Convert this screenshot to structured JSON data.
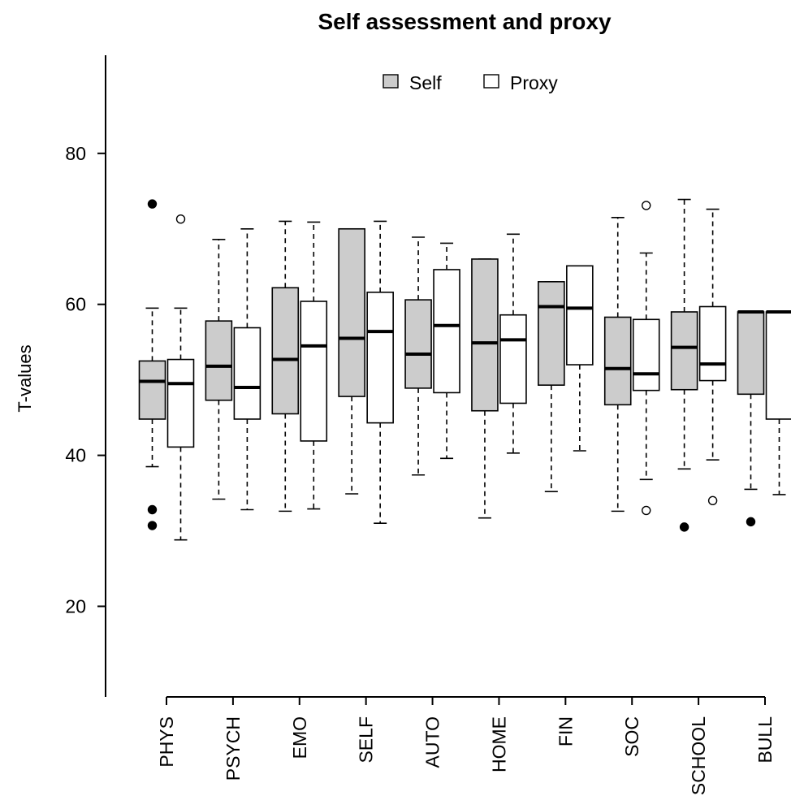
{
  "chart_data": {
    "type": "boxplot",
    "title": "Self assessment and proxy",
    "ylabel": "T-values",
    "xlabel": "",
    "ylim": [
      8,
      93
    ],
    "yticks": [
      20,
      40,
      60,
      80
    ],
    "legend": {
      "placement": "top-center",
      "entries": [
        {
          "name": "Self",
          "fill": "#cccccc"
        },
        {
          "name": "Proxy",
          "fill": "#ffffff"
        }
      ]
    },
    "categories": [
      "PHYS",
      "PSYCH",
      "EMO",
      "SELF",
      "AUTO",
      "HOME",
      "FIN",
      "SOC",
      "SCHOOL",
      "BULL"
    ],
    "series": [
      {
        "name": "Self",
        "fill": "#cccccc",
        "outlier_style": "filled",
        "boxes": [
          {
            "whisker_low": 38.5,
            "q1": 44.8,
            "median": 49.8,
            "q3": 52.5,
            "whisker_high": 59.5,
            "outliers": [
              73.3,
              32.8,
              30.7
            ]
          },
          {
            "whisker_low": 34.2,
            "q1": 47.3,
            "median": 51.8,
            "q3": 57.8,
            "whisker_high": 68.6,
            "outliers": []
          },
          {
            "whisker_low": 32.6,
            "q1": 45.5,
            "median": 52.7,
            "q3": 62.2,
            "whisker_high": 71.0,
            "outliers": []
          },
          {
            "whisker_low": 34.9,
            "q1": 47.8,
            "median": 55.5,
            "q3": 70.0,
            "whisker_high": 70.0,
            "outliers": []
          },
          {
            "whisker_low": 37.4,
            "q1": 48.9,
            "median": 53.4,
            "q3": 60.6,
            "whisker_high": 68.9,
            "outliers": []
          },
          {
            "whisker_low": 31.7,
            "q1": 45.9,
            "median": 54.9,
            "q3": 66.0,
            "whisker_high": 66.0,
            "outliers": []
          },
          {
            "whisker_low": 35.2,
            "q1": 49.3,
            "median": 59.7,
            "q3": 63.0,
            "whisker_high": 63.0,
            "outliers": []
          },
          {
            "whisker_low": 32.6,
            "q1": 46.7,
            "median": 51.5,
            "q3": 58.3,
            "whisker_high": 71.5,
            "outliers": []
          },
          {
            "whisker_low": 38.2,
            "q1": 48.7,
            "median": 54.3,
            "q3": 59.0,
            "whisker_high": 73.9,
            "outliers": [
              30.5
            ]
          },
          {
            "whisker_low": 35.5,
            "q1": 48.1,
            "median": 59.0,
            "q3": 59.0,
            "whisker_high": 59.0,
            "outliers": [
              31.2
            ]
          }
        ]
      },
      {
        "name": "Proxy",
        "fill": "#ffffff",
        "outlier_style": "open",
        "boxes": [
          {
            "whisker_low": 28.8,
            "q1": 41.1,
            "median": 49.5,
            "q3": 52.7,
            "whisker_high": 59.5,
            "outliers": [
              71.3
            ]
          },
          {
            "whisker_low": 32.8,
            "q1": 44.8,
            "median": 49.0,
            "q3": 56.9,
            "whisker_high": 70.0,
            "outliers": []
          },
          {
            "whisker_low": 32.9,
            "q1": 41.9,
            "median": 54.5,
            "q3": 60.4,
            "whisker_high": 70.9,
            "outliers": []
          },
          {
            "whisker_low": 31.0,
            "q1": 44.3,
            "median": 56.4,
            "q3": 61.6,
            "whisker_high": 71.0,
            "outliers": []
          },
          {
            "whisker_low": 39.6,
            "q1": 48.3,
            "median": 57.2,
            "q3": 64.6,
            "whisker_high": 68.1,
            "outliers": []
          },
          {
            "whisker_low": 40.3,
            "q1": 46.9,
            "median": 55.3,
            "q3": 58.6,
            "whisker_high": 69.3,
            "outliers": []
          },
          {
            "whisker_low": 40.6,
            "q1": 52.0,
            "median": 59.5,
            "q3": 65.1,
            "whisker_high": 65.1,
            "outliers": []
          },
          {
            "whisker_low": 36.8,
            "q1": 48.6,
            "median": 50.8,
            "q3": 58.0,
            "whisker_high": 66.8,
            "outliers": [
              73.1,
              32.7
            ]
          },
          {
            "whisker_low": 39.4,
            "q1": 49.9,
            "median": 52.1,
            "q3": 59.7,
            "whisker_high": 72.6,
            "outliers": [
              34.0
            ]
          },
          {
            "whisker_low": 34.8,
            "q1": 44.8,
            "median": 59.0,
            "q3": 59.0,
            "whisker_high": 59.0,
            "outliers": []
          }
        ]
      }
    ]
  }
}
